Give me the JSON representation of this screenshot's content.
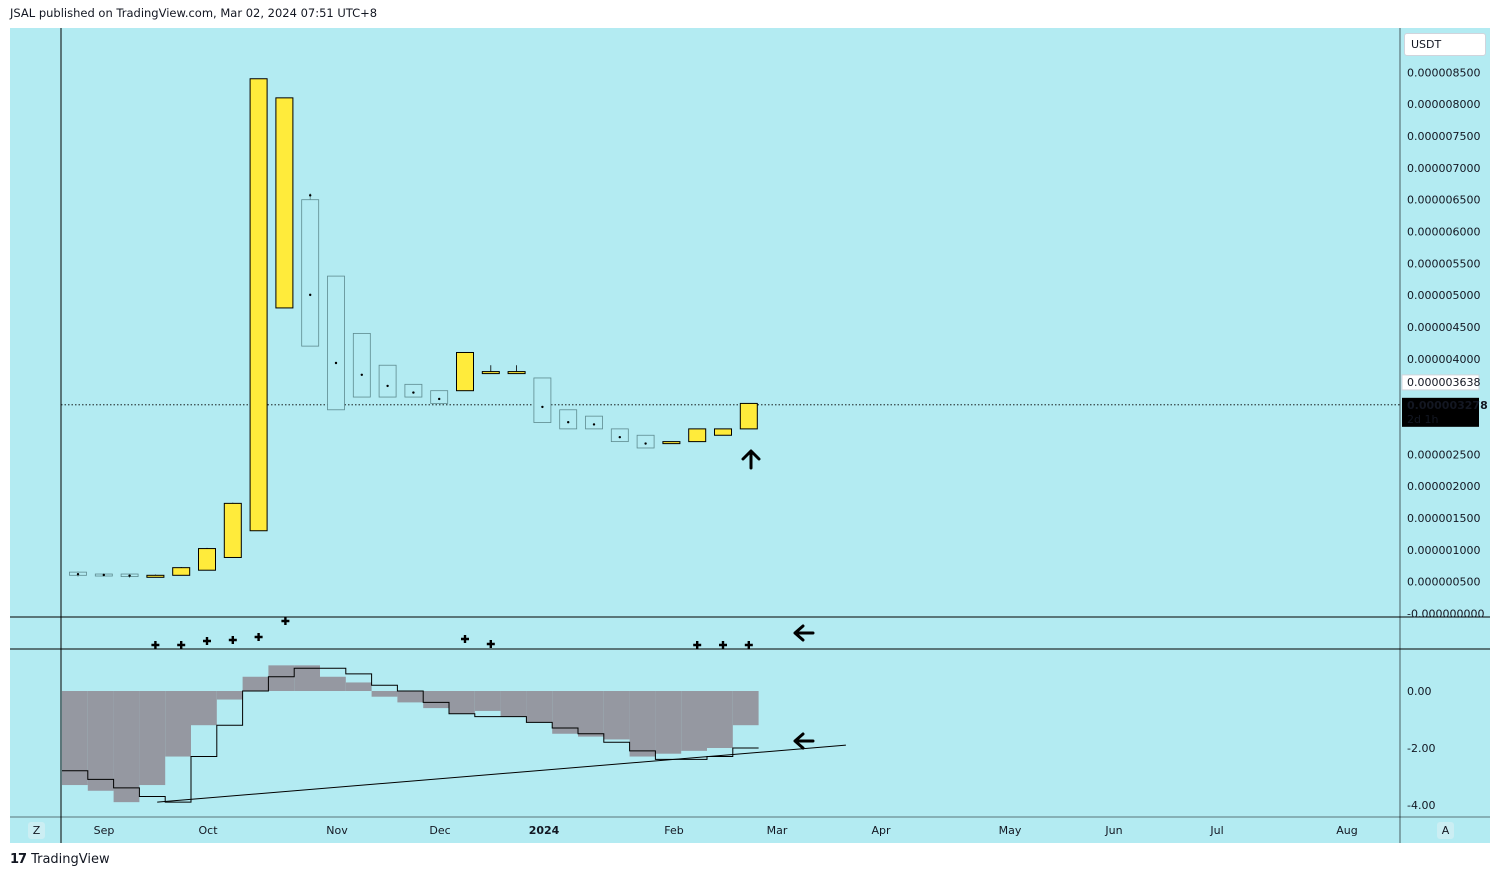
{
  "header": {
    "publish_line": "JSAL published on TradingView.com, Mar 02, 2024 07:51 UTC+8"
  },
  "footer": {
    "brand": "TradingView"
  },
  "price_scale": {
    "currency": "USDT",
    "ticks": [
      "0.000008500",
      "0.000008000",
      "0.000007500",
      "0.000007000",
      "0.000006500",
      "0.000006000",
      "0.000005500",
      "0.000005000",
      "0.000004500",
      "0.000004000",
      "0.000002500",
      "0.000002000",
      "0.000001500",
      "0.000001000",
      "0.000000500",
      "-0.000000000"
    ],
    "tag_prev": "0.000003638",
    "tag_last": "0.000003278",
    "countdown": "2d 1h"
  },
  "oscillator_scale": {
    "ticks": [
      "0.00",
      "-2.00",
      "-4.00"
    ]
  },
  "time_axis": {
    "labels": [
      "Sep",
      "Oct",
      "Nov",
      "Dec",
      "2024",
      "Feb",
      "Mar",
      "Apr",
      "May",
      "Jun",
      "Jul",
      "Aug"
    ],
    "corner_left": "Z",
    "corner_right": "A"
  },
  "colors": {
    "background": "#b3ebf2",
    "up": "#ffeb3b",
    "down": "#b3ebf2",
    "outline": "#000000",
    "hist": "#9598a1"
  },
  "chart_data": {
    "type": "candlestick",
    "interval": "weekly",
    "ylim": [
      -1e-07,
      8.8e-06
    ],
    "last_price": 3.278e-06,
    "candles": [
      {
        "o": 6.5e-07,
        "c": 6e-07,
        "h": 6.6e-07,
        "l": 5.8e-07
      },
      {
        "o": 6.2e-07,
        "c": 6e-07,
        "h": 6.3e-07,
        "l": 5.8e-07
      },
      {
        "o": 6.2e-07,
        "c": 5.8e-07,
        "h": 6.2e-07,
        "l": 5.6e-07
      },
      {
        "o": 5.8e-07,
        "c": 6e-07,
        "h": 6.1e-07,
        "l": 5.7e-07
      },
      {
        "o": 6e-07,
        "c": 7.2e-07,
        "h": 7.3e-07,
        "l": 6e-07
      },
      {
        "o": 6.8e-07,
        "c": 1.02e-06,
        "h": 1.03e-06,
        "l": 6.8e-07
      },
      {
        "o": 8.8e-07,
        "c": 1.73e-06,
        "h": 1.74e-06,
        "l": 8.8e-07
      },
      {
        "o": 1.3e-06,
        "c": 8.4e-06,
        "h": 8.4e-06,
        "l": 1.3e-06
      },
      {
        "o": 4.8e-06,
        "c": 8.1e-06,
        "h": 8.1e-06,
        "l": 4.8e-06
      },
      {
        "o": 6.5e-06,
        "c": 4.2e-06,
        "h": 6.6e-06,
        "l": 4.2e-06
      },
      {
        "o": 5.3e-06,
        "c": 3.2e-06,
        "h": 5.3e-06,
        "l": 3.2e-06
      },
      {
        "o": 4.4e-06,
        "c": 3.4e-06,
        "h": 4.4e-06,
        "l": 3.4e-06
      },
      {
        "o": 3.9e-06,
        "c": 3.4e-06,
        "h": 3.9e-06,
        "l": 3.4e-06
      },
      {
        "o": 3.6e-06,
        "c": 3.4e-06,
        "h": 3.6e-06,
        "l": 3.4e-06
      },
      {
        "o": 3.5e-06,
        "c": 3.3e-06,
        "h": 3.5e-06,
        "l": 3.3e-06
      },
      {
        "o": 3.5e-06,
        "c": 4.1e-06,
        "h": 4.1e-06,
        "l": 3.5e-06
      },
      {
        "o": 3.8e-06,
        "c": 3.8e-06,
        "h": 3.9e-06,
        "l": 3.8e-06
      },
      {
        "o": 3.8e-06,
        "c": 3.8e-06,
        "h": 3.9e-06,
        "l": 3.8e-06
      },
      {
        "o": 3.7e-06,
        "c": 3e-06,
        "h": 3.7e-06,
        "l": 3e-06
      },
      {
        "o": 3.2e-06,
        "c": 2.9e-06,
        "h": 3.2e-06,
        "l": 2.9e-06
      },
      {
        "o": 3.1e-06,
        "c": 2.9e-06,
        "h": 3.1e-06,
        "l": 2.9e-06
      },
      {
        "o": 2.9e-06,
        "c": 2.7e-06,
        "h": 2.9e-06,
        "l": 2.7e-06
      },
      {
        "o": 2.8e-06,
        "c": 2.6e-06,
        "h": 2.8e-06,
        "l": 2.6e-06
      },
      {
        "o": 2.7e-06,
        "c": 2.7e-06,
        "h": 2.7e-06,
        "l": 2.7e-06
      },
      {
        "o": 2.7e-06,
        "c": 2.9e-06,
        "h": 2.9e-06,
        "l": 2.7e-06
      },
      {
        "o": 2.8e-06,
        "c": 2.9e-06,
        "h": 2.9e-06,
        "l": 2.8e-06
      },
      {
        "o": 2.9e-06,
        "c": 3.3e-06,
        "h": 3.3e-06,
        "l": 2.9e-06
      }
    ],
    "oscillator": {
      "ylim": [
        -4.2,
        1.3
      ],
      "histogram": [
        -3.3,
        -3.5,
        -3.9,
        -3.3,
        -2.3,
        -1.2,
        -0.3,
        0.5,
        0.9,
        0.9,
        0.5,
        0.3,
        -0.2,
        -0.4,
        -0.6,
        -0.8,
        -0.7,
        -0.9,
        -1.1,
        -1.5,
        -1.6,
        -1.7,
        -2.3,
        -2.2,
        -2.1,
        -2.0,
        -1.2
      ],
      "line": [
        -2.8,
        -3.1,
        -3.4,
        -3.7,
        -3.9,
        -2.3,
        -1.2,
        0.0,
        0.5,
        0.8,
        0.8,
        0.6,
        0.2,
        0.0,
        -0.4,
        -0.8,
        -0.9,
        -0.9,
        -1.1,
        -1.3,
        -1.5,
        -1.8,
        -2.1,
        -2.4,
        -2.4,
        -2.3,
        -2.0
      ]
    },
    "plus_markers": [
      3,
      4,
      5,
      6,
      7,
      8,
      15,
      16,
      24,
      25,
      26
    ],
    "trendline": {
      "from": [
        4,
        -3.9
      ],
      "to": [
        30.5,
        -1.9
      ]
    }
  }
}
